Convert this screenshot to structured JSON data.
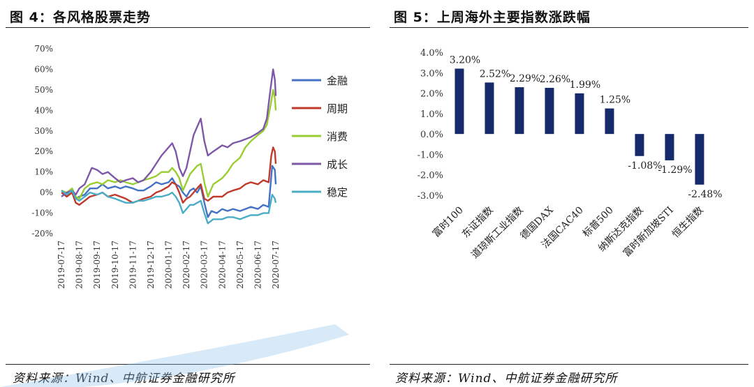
{
  "left_panel": {
    "title": "图 4：各风格股票走势",
    "source": "资料来源：Wind、中航证券金融研究所"
  },
  "right_panel": {
    "title": "图 5：上周海外主要指数涨跌幅",
    "source": "资料来源：Wind、中航证券金融研究所"
  },
  "chart_data": [
    {
      "type": "line",
      "title": "",
      "xlabel": "",
      "ylabel": "",
      "ylim": [
        -0.2,
        0.7
      ],
      "y_ticks": [
        "70%",
        "60%",
        "50%",
        "40%",
        "30%",
        "20%",
        "10%",
        "0%",
        "-10%",
        "-20%"
      ],
      "x_ticks": [
        "2019-07-17",
        "2019-08-17",
        "2019-09-17",
        "2019-10-17",
        "2019-11-17",
        "2019-12-17",
        "2020-01-17",
        "2020-02-17",
        "2020-03-17",
        "2020-04-17",
        "2020-05-17",
        "2020-06-17",
        "2020-07-17"
      ],
      "x_index_range": [
        0,
        12
      ],
      "legend_position": "right",
      "series": [
        {
          "name": "金融",
          "color": "#4472c4",
          "points": [
            [
              0,
              0.01
            ],
            [
              0.3,
              -0.01
            ],
            [
              0.5,
              0.01
            ],
            [
              0.8,
              -0.03
            ],
            [
              1.0,
              -0.02
            ],
            [
              1.3,
              -0.01
            ],
            [
              1.6,
              0.02
            ],
            [
              2.0,
              0.02
            ],
            [
              2.3,
              0.04
            ],
            [
              2.6,
              0.02
            ],
            [
              3.0,
              0.03
            ],
            [
              3.3,
              0.02
            ],
            [
              3.6,
              0.03
            ],
            [
              4.0,
              0.02
            ],
            [
              4.3,
              0.01
            ],
            [
              4.6,
              0.01
            ],
            [
              5.0,
              0.03
            ],
            [
              5.3,
              0.05
            ],
            [
              5.6,
              0.04
            ],
            [
              6.0,
              0.05
            ],
            [
              6.2,
              0.07
            ],
            [
              6.4,
              0.04
            ],
            [
              6.6,
              0.03
            ],
            [
              6.8,
              0.0
            ],
            [
              7.0,
              -0.02
            ],
            [
              7.2,
              0.01
            ],
            [
              7.4,
              0.02
            ],
            [
              7.6,
              0.0
            ],
            [
              7.8,
              0.03
            ],
            [
              8.0,
              -0.05
            ],
            [
              8.2,
              -0.12
            ],
            [
              8.4,
              -0.09
            ],
            [
              8.7,
              -0.1
            ],
            [
              9.0,
              -0.08
            ],
            [
              9.3,
              -0.09
            ],
            [
              9.6,
              -0.08
            ],
            [
              10.0,
              -0.09
            ],
            [
              10.3,
              -0.08
            ],
            [
              10.6,
              -0.07
            ],
            [
              11.0,
              -0.08
            ],
            [
              11.3,
              -0.06
            ],
            [
              11.6,
              -0.07
            ],
            [
              11.8,
              0.13
            ],
            [
              11.95,
              0.11
            ],
            [
              12.0,
              0.04
            ]
          ]
        },
        {
          "name": "周期",
          "color": "#c0392b",
          "points": [
            [
              0,
              0.0
            ],
            [
              0.3,
              -0.02
            ],
            [
              0.6,
              0.0
            ],
            [
              0.8,
              -0.05
            ],
            [
              1.0,
              -0.06
            ],
            [
              1.3,
              -0.04
            ],
            [
              1.6,
              -0.02
            ],
            [
              2.0,
              -0.01
            ],
            [
              2.3,
              0.0
            ],
            [
              2.6,
              -0.02
            ],
            [
              3.0,
              -0.01
            ],
            [
              3.3,
              -0.02
            ],
            [
              3.6,
              -0.03
            ],
            [
              4.0,
              -0.05
            ],
            [
              4.3,
              -0.04
            ],
            [
              4.6,
              -0.03
            ],
            [
              5.0,
              -0.02
            ],
            [
              5.3,
              0.0
            ],
            [
              5.6,
              0.01
            ],
            [
              6.0,
              0.03
            ],
            [
              6.2,
              0.05
            ],
            [
              6.4,
              0.04
            ],
            [
              6.6,
              0.0
            ],
            [
              6.8,
              -0.05
            ],
            [
              7.0,
              -0.03
            ],
            [
              7.2,
              -0.02
            ],
            [
              7.4,
              0.0
            ],
            [
              7.6,
              0.02
            ],
            [
              7.8,
              0.04
            ],
            [
              8.0,
              -0.03
            ],
            [
              8.2,
              -0.04
            ],
            [
              8.5,
              -0.02
            ],
            [
              9.0,
              -0.02
            ],
            [
              9.3,
              0.0
            ],
            [
              9.6,
              0.01
            ],
            [
              10.0,
              0.02
            ],
            [
              10.3,
              0.04
            ],
            [
              10.6,
              0.05
            ],
            [
              11.0,
              0.04
            ],
            [
              11.3,
              0.06
            ],
            [
              11.6,
              0.05
            ],
            [
              11.75,
              0.18
            ],
            [
              11.85,
              0.22
            ],
            [
              11.95,
              0.2
            ],
            [
              12.0,
              0.14
            ]
          ]
        },
        {
          "name": "消费",
          "color": "#9acd32",
          "points": [
            [
              0,
              0.01
            ],
            [
              0.3,
              0.0
            ],
            [
              0.6,
              0.02
            ],
            [
              0.8,
              -0.02
            ],
            [
              1.0,
              -0.03
            ],
            [
              1.3,
              0.02
            ],
            [
              1.6,
              0.04
            ],
            [
              2.0,
              0.05
            ],
            [
              2.3,
              0.04
            ],
            [
              2.6,
              0.06
            ],
            [
              3.0,
              0.05
            ],
            [
              3.3,
              0.06
            ],
            [
              3.6,
              0.05
            ],
            [
              4.0,
              0.04
            ],
            [
              4.3,
              0.05
            ],
            [
              4.6,
              0.06
            ],
            [
              5.0,
              0.07
            ],
            [
              5.3,
              0.08
            ],
            [
              5.6,
              0.1
            ],
            [
              6.0,
              0.1
            ],
            [
              6.2,
              0.12
            ],
            [
              6.4,
              0.1
            ],
            [
              6.6,
              0.07
            ],
            [
              6.8,
              0.01
            ],
            [
              7.0,
              0.05
            ],
            [
              7.2,
              0.09
            ],
            [
              7.4,
              0.11
            ],
            [
              7.6,
              0.13
            ],
            [
              7.8,
              0.14
            ],
            [
              8.0,
              0.05
            ],
            [
              8.2,
              -0.02
            ],
            [
              8.5,
              0.04
            ],
            [
              9.0,
              0.07
            ],
            [
              9.3,
              0.1
            ],
            [
              9.6,
              0.14
            ],
            [
              10.0,
              0.17
            ],
            [
              10.3,
              0.22
            ],
            [
              10.6,
              0.25
            ],
            [
              11.0,
              0.28
            ],
            [
              11.3,
              0.3
            ],
            [
              11.5,
              0.33
            ],
            [
              11.7,
              0.42
            ],
            [
              11.85,
              0.5
            ],
            [
              11.95,
              0.46
            ],
            [
              12.0,
              0.4
            ]
          ]
        },
        {
          "name": "成长",
          "color": "#7e57a8",
          "points": [
            [
              0,
              -0.02
            ],
            [
              0.3,
              0.0
            ],
            [
              0.6,
              0.01
            ],
            [
              0.8,
              -0.01
            ],
            [
              1.0,
              0.02
            ],
            [
              1.3,
              0.04
            ],
            [
              1.5,
              0.08
            ],
            [
              1.7,
              0.12
            ],
            [
              2.0,
              0.11
            ],
            [
              2.3,
              0.09
            ],
            [
              2.6,
              0.1
            ],
            [
              3.0,
              0.07
            ],
            [
              3.3,
              0.05
            ],
            [
              3.6,
              0.06
            ],
            [
              4.0,
              0.07
            ],
            [
              4.3,
              0.05
            ],
            [
              4.6,
              0.06
            ],
            [
              5.0,
              0.1
            ],
            [
              5.3,
              0.14
            ],
            [
              5.6,
              0.18
            ],
            [
              6.0,
              0.22
            ],
            [
              6.2,
              0.24
            ],
            [
              6.4,
              0.2
            ],
            [
              6.6,
              0.12
            ],
            [
              6.8,
              0.08
            ],
            [
              7.0,
              0.12
            ],
            [
              7.2,
              0.2
            ],
            [
              7.4,
              0.28
            ],
            [
              7.6,
              0.32
            ],
            [
              7.8,
              0.36
            ],
            [
              8.0,
              0.25
            ],
            [
              8.2,
              0.18
            ],
            [
              8.5,
              0.2
            ],
            [
              9.0,
              0.23
            ],
            [
              9.3,
              0.22
            ],
            [
              9.6,
              0.24
            ],
            [
              10.0,
              0.25
            ],
            [
              10.3,
              0.26
            ],
            [
              10.6,
              0.27
            ],
            [
              11.0,
              0.29
            ],
            [
              11.3,
              0.31
            ],
            [
              11.5,
              0.36
            ],
            [
              11.7,
              0.5
            ],
            [
              11.85,
              0.6
            ],
            [
              11.95,
              0.55
            ],
            [
              12.0,
              0.47
            ]
          ]
        },
        {
          "name": "稳定",
          "color": "#4bacc6",
          "points": [
            [
              0,
              0.01
            ],
            [
              0.3,
              -0.01
            ],
            [
              0.6,
              0.01
            ],
            [
              0.8,
              -0.03
            ],
            [
              1.0,
              -0.04
            ],
            [
              1.3,
              -0.02
            ],
            [
              1.6,
              0.0
            ],
            [
              2.0,
              -0.01
            ],
            [
              2.3,
              0.0
            ],
            [
              2.6,
              -0.02
            ],
            [
              3.0,
              -0.03
            ],
            [
              3.3,
              -0.04
            ],
            [
              3.6,
              -0.05
            ],
            [
              4.0,
              -0.05
            ],
            [
              4.3,
              -0.04
            ],
            [
              4.6,
              -0.04
            ],
            [
              5.0,
              -0.03
            ],
            [
              5.3,
              -0.02
            ],
            [
              5.6,
              -0.02
            ],
            [
              6.0,
              -0.01
            ],
            [
              6.2,
              0.0
            ],
            [
              6.4,
              -0.02
            ],
            [
              6.6,
              -0.05
            ],
            [
              6.8,
              -0.1
            ],
            [
              7.0,
              -0.08
            ],
            [
              7.2,
              -0.06
            ],
            [
              7.4,
              -0.06
            ],
            [
              7.6,
              -0.05
            ],
            [
              7.8,
              -0.04
            ],
            [
              8.0,
              -0.1
            ],
            [
              8.2,
              -0.15
            ],
            [
              8.5,
              -0.13
            ],
            [
              9.0,
              -0.13
            ],
            [
              9.3,
              -0.12
            ],
            [
              9.6,
              -0.12
            ],
            [
              10.0,
              -0.13
            ],
            [
              10.3,
              -0.12
            ],
            [
              10.6,
              -0.11
            ],
            [
              11.0,
              -0.11
            ],
            [
              11.3,
              -0.1
            ],
            [
              11.6,
              -0.1
            ],
            [
              11.8,
              -0.01
            ],
            [
              11.95,
              -0.03
            ],
            [
              12.0,
              -0.05
            ]
          ]
        }
      ]
    },
    {
      "type": "bar",
      "title": "",
      "xlabel": "",
      "ylabel": "",
      "ylim": [
        -0.03,
        0.04
      ],
      "y_ticks": [
        "4.0%",
        "3.0%",
        "2.0%",
        "1.0%",
        "0.0%",
        "-1.0%",
        "-2.0%",
        "-3.0%"
      ],
      "bar_color": "#15296b",
      "categories": [
        "富时100",
        "东证指数",
        "道琼斯工业指数",
        "德国DAX",
        "法国CAC40",
        "标普500",
        "纳斯达克指数",
        "富时新加坡STI",
        "恒生指数"
      ],
      "values": [
        0.032,
        0.0252,
        0.0229,
        0.0226,
        0.0199,
        0.0125,
        -0.0108,
        -0.0129,
        -0.0248
      ],
      "data_labels": [
        "3.20%",
        "2.52%",
        "2.29%",
        "2.26%",
        "1.99%",
        "1.25%",
        "-1.08%",
        "-1.29%",
        "-2.48%"
      ]
    }
  ]
}
